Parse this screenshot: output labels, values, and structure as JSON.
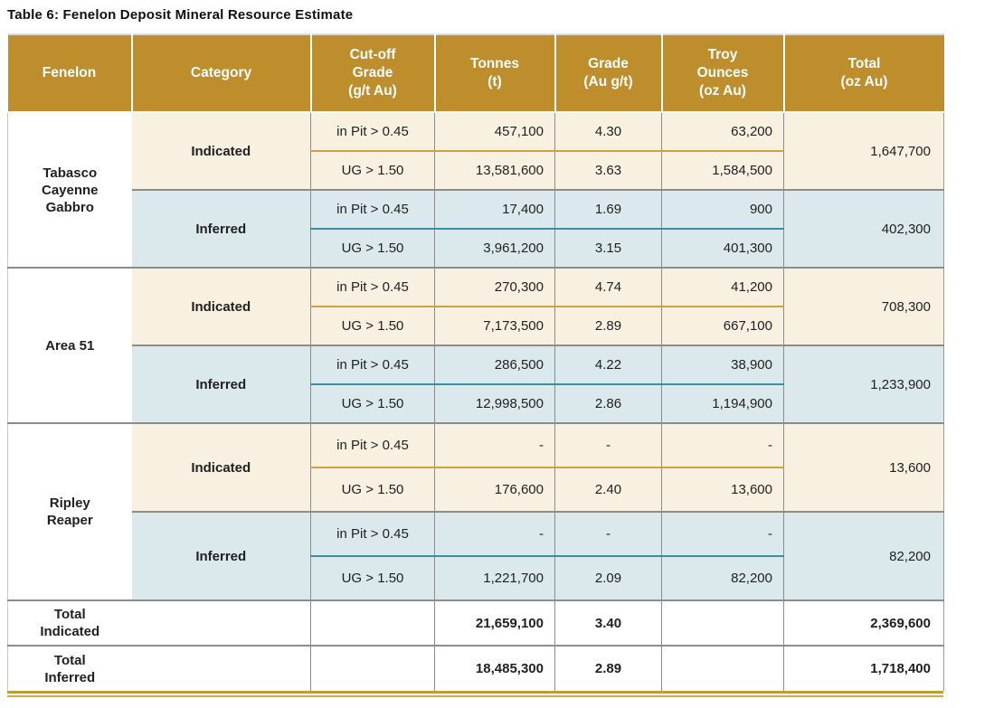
{
  "page": {
    "title": "Table 6: Fenelon Deposit Mineral Resource Estimate"
  },
  "colors": {
    "header_bg": "#be8e2d",
    "header_text": "#ffffff",
    "indicated_bg": "#f8f1e1",
    "inferred_bg": "#dce9ec",
    "gold_divider": "#d1a040",
    "teal_divider": "#3390a5",
    "grid_gray": "#8c8c8c",
    "bottom_rule_gold": "#c49a36"
  },
  "table": {
    "headers": {
      "fenelon": "Fenelon",
      "category": "Category",
      "cutoff": "Cut-off\nGrade\n(g/t Au)",
      "tonnes": "Tonnes\n(t)",
      "grade": "Grade\n(Au g/t)",
      "ounces": "Troy\nOunces\n(oz Au)",
      "total": "Total\n(oz Au)"
    },
    "sections": [
      {
        "deposit": "Tabasco\nCayenne\nGabbro",
        "groups": [
          {
            "category": "Indicated",
            "rows": [
              {
                "cutoff": "in Pit > 0.45",
                "tonnes": "457,100",
                "grade": "4.30",
                "ounces": "63,200"
              },
              {
                "cutoff": "UG > 1.50",
                "tonnes": "13,581,600",
                "grade": "3.63",
                "ounces": "1,584,500"
              }
            ],
            "total": "1,647,700"
          },
          {
            "category": "Inferred",
            "rows": [
              {
                "cutoff": "in Pit > 0.45",
                "tonnes": "17,400",
                "grade": "1.69",
                "ounces": "900"
              },
              {
                "cutoff": "UG > 1.50",
                "tonnes": "3,961,200",
                "grade": "3.15",
                "ounces": "401,300"
              }
            ],
            "total": "402,300"
          }
        ]
      },
      {
        "deposit": "Area 51",
        "groups": [
          {
            "category": "Indicated",
            "rows": [
              {
                "cutoff": "in Pit > 0.45",
                "tonnes": "270,300",
                "grade": "4.74",
                "ounces": "41,200"
              },
              {
                "cutoff": "UG > 1.50",
                "tonnes": "7,173,500",
                "grade": "2.89",
                "ounces": "667,100"
              }
            ],
            "total": "708,300"
          },
          {
            "category": "Inferred",
            "rows": [
              {
                "cutoff": "in Pit > 0.45",
                "tonnes": "286,500",
                "grade": "4.22",
                "ounces": "38,900"
              },
              {
                "cutoff": "UG > 1.50",
                "tonnes": "12,998,500",
                "grade": "2.86",
                "ounces": "1,194,900"
              }
            ],
            "total": "1,233,900"
          }
        ]
      },
      {
        "deposit": "Ripley\nReaper",
        "groups": [
          {
            "category": "Indicated",
            "rows": [
              {
                "cutoff": "in Pit > 0.45",
                "tonnes": "-",
                "grade": "-",
                "ounces": "-"
              },
              {
                "cutoff": "UG > 1.50",
                "tonnes": "176,600",
                "grade": "2.40",
                "ounces": "13,600"
              }
            ],
            "total": "13,600"
          },
          {
            "category": "Inferred",
            "rows": [
              {
                "cutoff": "in Pit > 0.45",
                "tonnes": "-",
                "grade": "-",
                "ounces": "-"
              },
              {
                "cutoff": "UG > 1.50",
                "tonnes": "1,221,700",
                "grade": "2.09",
                "ounces": "82,200"
              }
            ],
            "total": "82,200"
          }
        ]
      }
    ],
    "totals": [
      {
        "label": "Total\nIndicated",
        "tonnes": "21,659,100",
        "grade": "3.40",
        "total": "2,369,600"
      },
      {
        "label": "Total\nInferred",
        "tonnes": "18,485,300",
        "grade": "2.89",
        "total": "1,718,400"
      }
    ]
  }
}
